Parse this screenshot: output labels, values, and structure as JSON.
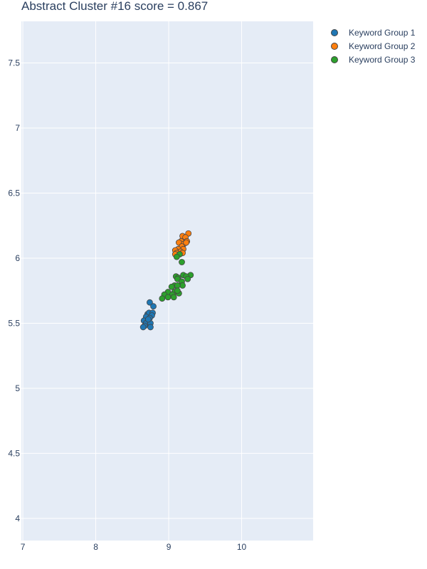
{
  "title": "Abstract Cluster #16 score = 0.867",
  "chart_data": {
    "type": "scatter",
    "title": "Abstract Cluster #16 score = 0.867",
    "xlabel": "",
    "ylabel": "",
    "xlim": [
      6.98,
      10.98
    ],
    "ylim": [
      3.83,
      7.82
    ],
    "x_ticks": [
      7,
      8,
      9,
      10
    ],
    "x_tick_labels": [
      "7",
      "8",
      "9",
      "10"
    ],
    "y_ticks": [
      4,
      4.5,
      5,
      5.5,
      6,
      6.5,
      7,
      7.5
    ],
    "y_tick_labels": [
      "4",
      "4.5",
      "5",
      "5.5",
      "6",
      "6.5",
      "7",
      "7.5"
    ],
    "grid": true,
    "legend_position": "top-right",
    "series": [
      {
        "name": "Keyword Group 1",
        "color": "#1f77b4",
        "x": [
          8.74,
          8.79,
          8.71,
          8.73,
          8.78,
          8.77,
          8.69,
          8.74,
          8.66,
          8.71,
          8.69,
          8.75,
          8.67,
          8.75,
          8.65,
          8.72
        ],
        "y": [
          5.66,
          5.63,
          5.57,
          5.58,
          5.58,
          5.56,
          5.55,
          5.54,
          5.52,
          5.51,
          5.5,
          5.5,
          5.48,
          5.47,
          5.47,
          5.53
        ]
      },
      {
        "name": "Keyword Group 2",
        "color": "#ff7f0e",
        "x": [
          9.27,
          9.19,
          9.23,
          9.17,
          9.25,
          9.14,
          9.21,
          9.18,
          9.24,
          9.2,
          9.13,
          9.16,
          9.09,
          9.11,
          9.19,
          9.09
        ],
        "y": [
          6.19,
          6.17,
          6.16,
          6.13,
          6.13,
          6.12,
          6.11,
          6.09,
          6.12,
          6.07,
          6.07,
          6.05,
          6.06,
          6.04,
          6.04,
          6.03
        ]
      },
      {
        "name": "Keyword Group 3",
        "color": "#2ca02c",
        "x": [
          9.15,
          9.11,
          9.18,
          9.1,
          9.13,
          9.3,
          9.2,
          9.24,
          9.12,
          9.26,
          9.18,
          9.08,
          9.19,
          9.12,
          9.04,
          8.99,
          9.08,
          9.14,
          8.94,
          9.05,
          8.99,
          9.07,
          8.91,
          9.12
        ],
        "y": [
          6.03,
          6.01,
          5.97,
          5.86,
          5.85,
          5.87,
          5.87,
          5.86,
          5.84,
          5.84,
          5.82,
          5.79,
          5.79,
          5.79,
          5.78,
          5.74,
          5.74,
          5.73,
          5.72,
          5.72,
          5.7,
          5.7,
          5.69,
          5.75
        ]
      }
    ]
  }
}
